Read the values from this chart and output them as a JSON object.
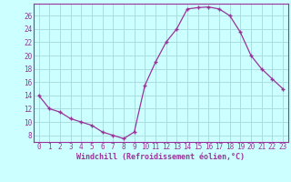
{
  "x": [
    0,
    1,
    2,
    3,
    4,
    5,
    6,
    7,
    8,
    9,
    10,
    11,
    12,
    13,
    14,
    15,
    16,
    17,
    18,
    19,
    20,
    21,
    22,
    23
  ],
  "y": [
    14,
    12,
    11.5,
    10.5,
    10,
    9.5,
    8.5,
    8,
    7.5,
    8.5,
    15.5,
    19,
    22,
    24,
    27,
    27.2,
    27.3,
    27,
    26,
    23.5,
    20,
    18,
    16.5,
    15
  ],
  "line_color": "#993399",
  "marker": "+",
  "marker_color": "#993399",
  "bg_color": "#ccffff",
  "grid_color": "#aadddd",
  "title": "Windchill (Refroidissement éolien,°C)",
  "xlim": [
    -0.5,
    23.5
  ],
  "ylim": [
    7,
    27.8
  ],
  "yticks": [
    8,
    10,
    12,
    14,
    16,
    18,
    20,
    22,
    24,
    26
  ],
  "xticks": [
    0,
    1,
    2,
    3,
    4,
    5,
    6,
    7,
    8,
    9,
    10,
    11,
    12,
    13,
    14,
    15,
    16,
    17,
    18,
    19,
    20,
    21,
    22,
    23
  ],
  "tick_label_color": "#993399",
  "spine_color": "#993399",
  "xlabel_color": "#993399",
  "tick_fontsize": 5.5,
  "xlabel_fontsize": 6.0
}
